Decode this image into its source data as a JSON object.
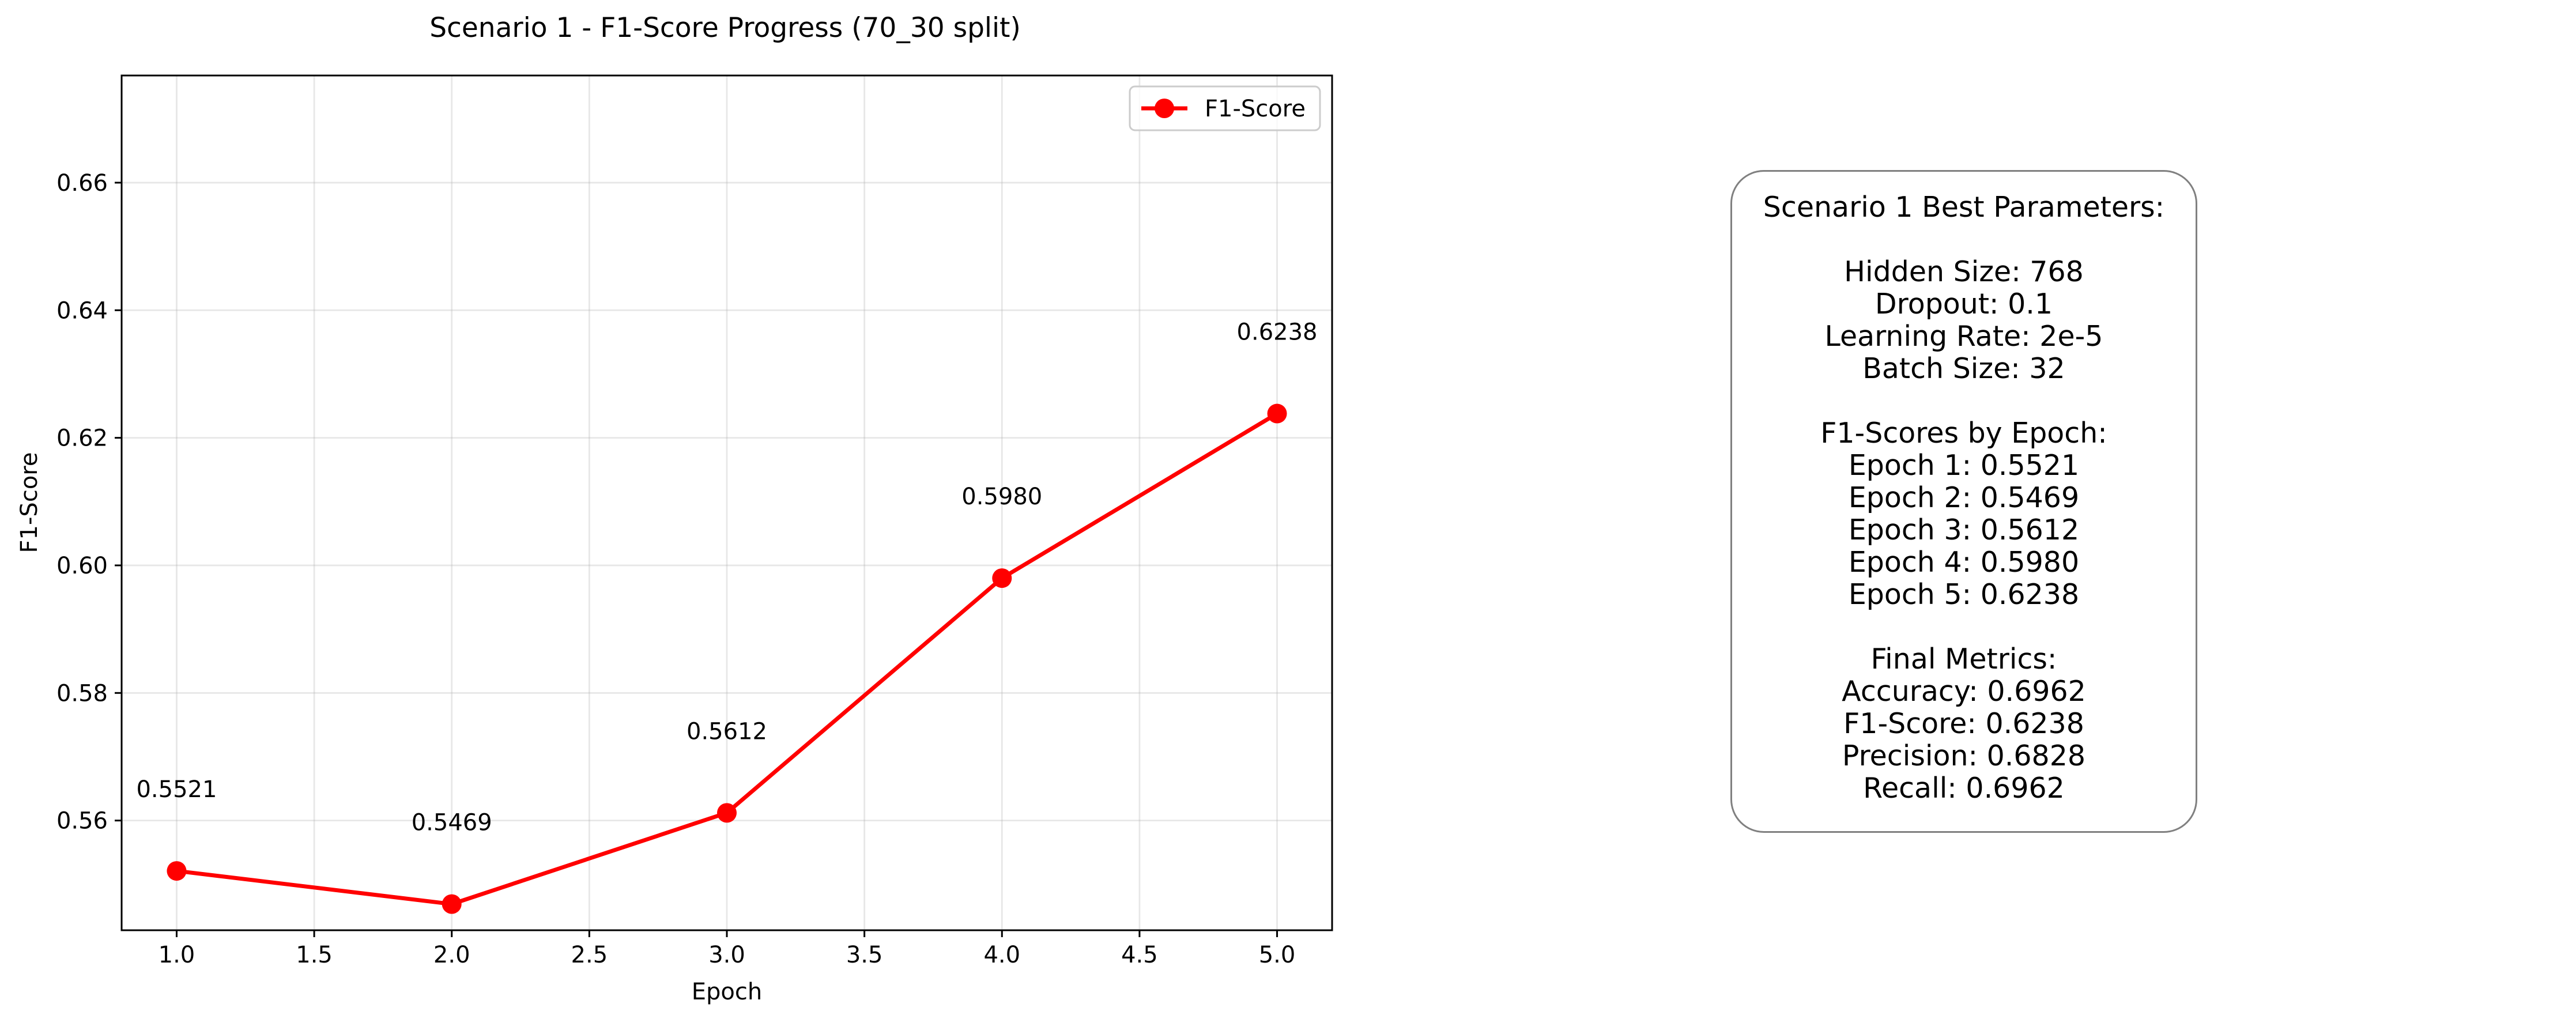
{
  "chart_data": {
    "type": "line",
    "title": "Scenario 1 - F1-Score Progress (70_30 split)",
    "xlabel": "Epoch",
    "ylabel": "F1-Score",
    "xlim": [
      0.8,
      5.2
    ],
    "ylim": [
      0.5428,
      0.6768
    ],
    "x_ticks": [
      "1.0",
      "1.5",
      "2.0",
      "2.5",
      "3.0",
      "3.5",
      "4.0",
      "4.5",
      "5.0"
    ],
    "y_ticks": [
      "0.56",
      "0.58",
      "0.60",
      "0.62",
      "0.64",
      "0.66"
    ],
    "grid": true,
    "legend_position": "top-right",
    "series": [
      {
        "name": "F1-Score",
        "color": "#ff0000",
        "x": [
          1.0,
          2.0,
          3.0,
          4.0,
          5.0
        ],
        "y": [
          0.5521,
          0.5469,
          0.5612,
          0.598,
          0.6238
        ],
        "labels": [
          "0.5521",
          "0.5469",
          "0.5612",
          "0.5980",
          "0.6238"
        ]
      }
    ]
  },
  "params_box": {
    "title": "Scenario 1 Best Parameters:",
    "hyperparameters": [
      "Hidden Size: 768",
      "Dropout: 0.1",
      "Learning Rate: 2e-5",
      "Batch Size: 32"
    ],
    "epoch_heading": "F1-Scores by Epoch:",
    "epoch_scores": [
      "Epoch 1: 0.5521",
      "Epoch 2: 0.5469",
      "Epoch 3: 0.5612",
      "Epoch 4: 0.5980",
      "Epoch 5: 0.6238"
    ],
    "final_heading": "Final Metrics:",
    "final_metrics": [
      "Accuracy: 0.6962",
      "F1-Score: 0.6238",
      "Precision: 0.6828",
      "Recall: 0.6962"
    ]
  }
}
